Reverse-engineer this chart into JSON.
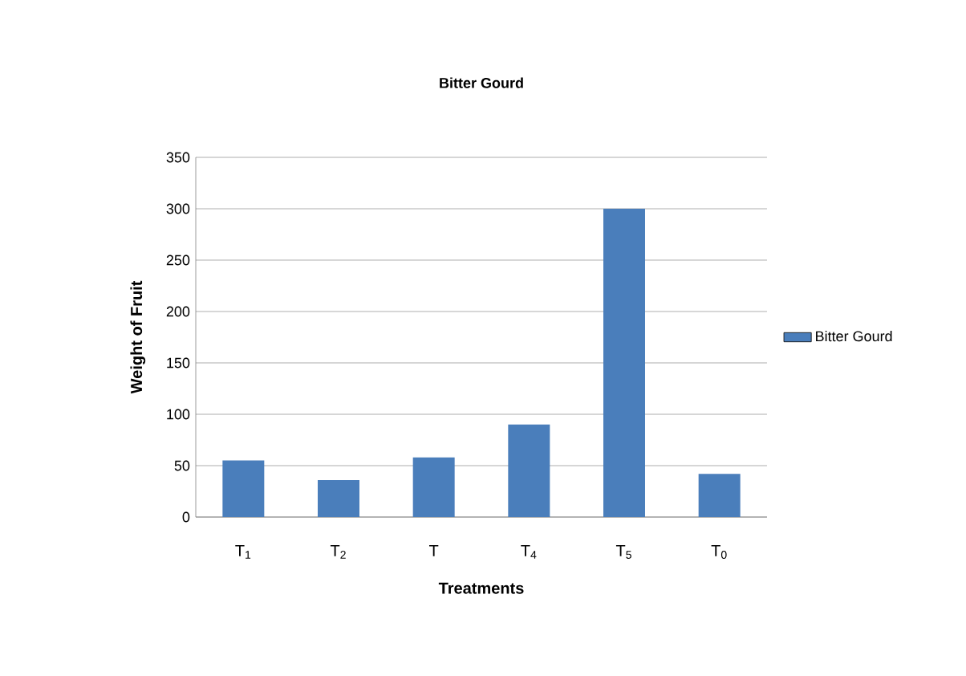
{
  "chart_data": {
    "type": "bar",
    "title": "Bitter Gourd",
    "xlabel": "Treatments",
    "ylabel": "Weight of Fruit",
    "categories": [
      "T$_{1}$",
      "T$_{2}$",
      "T",
      "T$_{4}$",
      "T$_{5}$",
      "T$_{0}$"
    ],
    "series": [
      {
        "name": "Bitter Gourd",
        "color": "#4a7ebb",
        "values": [
          55,
          36,
          58,
          90,
          300,
          42
        ]
      }
    ],
    "ylim": [
      0,
      350
    ],
    "yticks": [
      0,
      50,
      100,
      150,
      200,
      250,
      300,
      350
    ],
    "grid": "y",
    "legend": "right"
  }
}
